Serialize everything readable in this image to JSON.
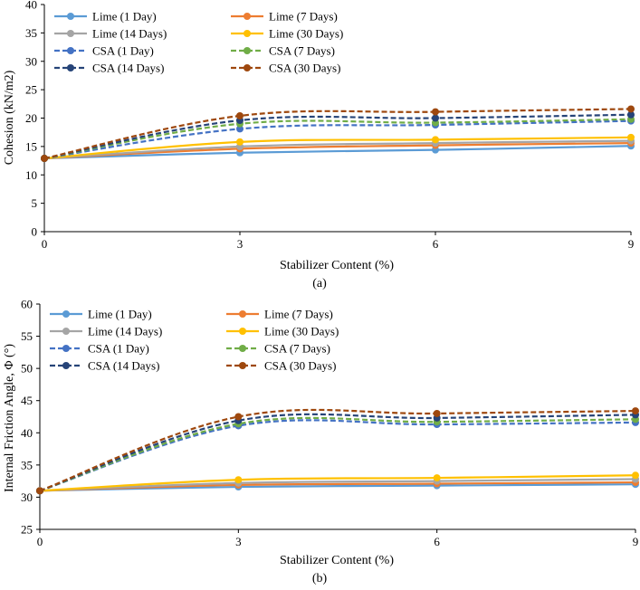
{
  "chart_data": [
    {
      "type": "line",
      "panel_label": "(a)",
      "xlabel": "Stabilizer Content (%)",
      "ylabel": "Cohesion (kN/m2)",
      "x": [
        0,
        3,
        6,
        9
      ],
      "xticks": [
        "0",
        "3",
        "6",
        "9"
      ],
      "xlim": [
        0,
        9
      ],
      "ylim": [
        0,
        40
      ],
      "yticks": [
        0,
        5,
        10,
        15,
        20,
        25,
        30,
        35,
        40
      ],
      "grid": false,
      "legend_position": "top-left",
      "series": [
        {
          "name": "Lime (1 Day)",
          "color": "#5b9bd5",
          "dash": false,
          "values": [
            12.9,
            13.9,
            14.4,
            15.1
          ]
        },
        {
          "name": "Lime (7 Days)",
          "color": "#ed7d31",
          "dash": false,
          "values": [
            12.9,
            14.6,
            15.2,
            15.6
          ]
        },
        {
          "name": "Lime (14 Days)",
          "color": "#a5a5a5",
          "dash": false,
          "values": [
            12.9,
            15.0,
            15.6,
            16.0
          ]
        },
        {
          "name": "Lime (30 Days)",
          "color": "#ffc000",
          "dash": false,
          "values": [
            12.9,
            15.8,
            16.2,
            16.6
          ]
        },
        {
          "name": "CSA (1 Day)",
          "color": "#4472c4",
          "dash": true,
          "values": [
            12.9,
            18.1,
            18.8,
            19.5
          ]
        },
        {
          "name": "CSA (7 Days)",
          "color": "#70ad47",
          "dash": true,
          "values": [
            12.9,
            19.0,
            19.2,
            19.8
          ]
        },
        {
          "name": "CSA (14 Days)",
          "color": "#264478",
          "dash": true,
          "values": [
            12.9,
            19.6,
            20.0,
            20.6
          ]
        },
        {
          "name": "CSA (30 Days)",
          "color": "#9e480e",
          "dash": true,
          "values": [
            12.9,
            20.4,
            21.1,
            21.6
          ]
        }
      ]
    },
    {
      "type": "line",
      "panel_label": "(b)",
      "xlabel": "Stabilizer Content (%)",
      "ylabel": "Internal Friction Angle, Φ (°)",
      "x": [
        0,
        3,
        6,
        9
      ],
      "xticks": [
        "0",
        "3",
        "6",
        "9"
      ],
      "xlim": [
        0,
        9
      ],
      "ylim": [
        25,
        60
      ],
      "yticks": [
        25,
        30,
        35,
        40,
        45,
        50,
        55,
        60
      ],
      "grid": false,
      "legend_position": "top-left",
      "series": [
        {
          "name": "Lime (1 Day)",
          "color": "#5b9bd5",
          "dash": false,
          "values": [
            31.0,
            31.6,
            31.8,
            32.0
          ]
        },
        {
          "name": "Lime (7 Days)",
          "color": "#ed7d31",
          "dash": false,
          "values": [
            31.0,
            31.9,
            32.1,
            32.3
          ]
        },
        {
          "name": "Lime (14 Days)",
          "color": "#a5a5a5",
          "dash": false,
          "values": [
            31.0,
            32.2,
            32.5,
            32.8
          ]
        },
        {
          "name": "Lime (30 Days)",
          "color": "#ffc000",
          "dash": false,
          "values": [
            31.0,
            32.7,
            33.0,
            33.4
          ]
        },
        {
          "name": "CSA (1 Day)",
          "color": "#4472c4",
          "dash": true,
          "values": [
            31.0,
            41.1,
            41.3,
            41.6
          ]
        },
        {
          "name": "CSA (7 Days)",
          "color": "#70ad47",
          "dash": true,
          "values": [
            31.0,
            41.4,
            41.7,
            42.1
          ]
        },
        {
          "name": "CSA (14 Days)",
          "color": "#264478",
          "dash": true,
          "values": [
            31.0,
            41.9,
            42.3,
            42.8
          ]
        },
        {
          "name": "CSA (30 Days)",
          "color": "#9e480e",
          "dash": true,
          "values": [
            31.0,
            42.5,
            43.0,
            43.4
          ]
        }
      ]
    }
  ]
}
